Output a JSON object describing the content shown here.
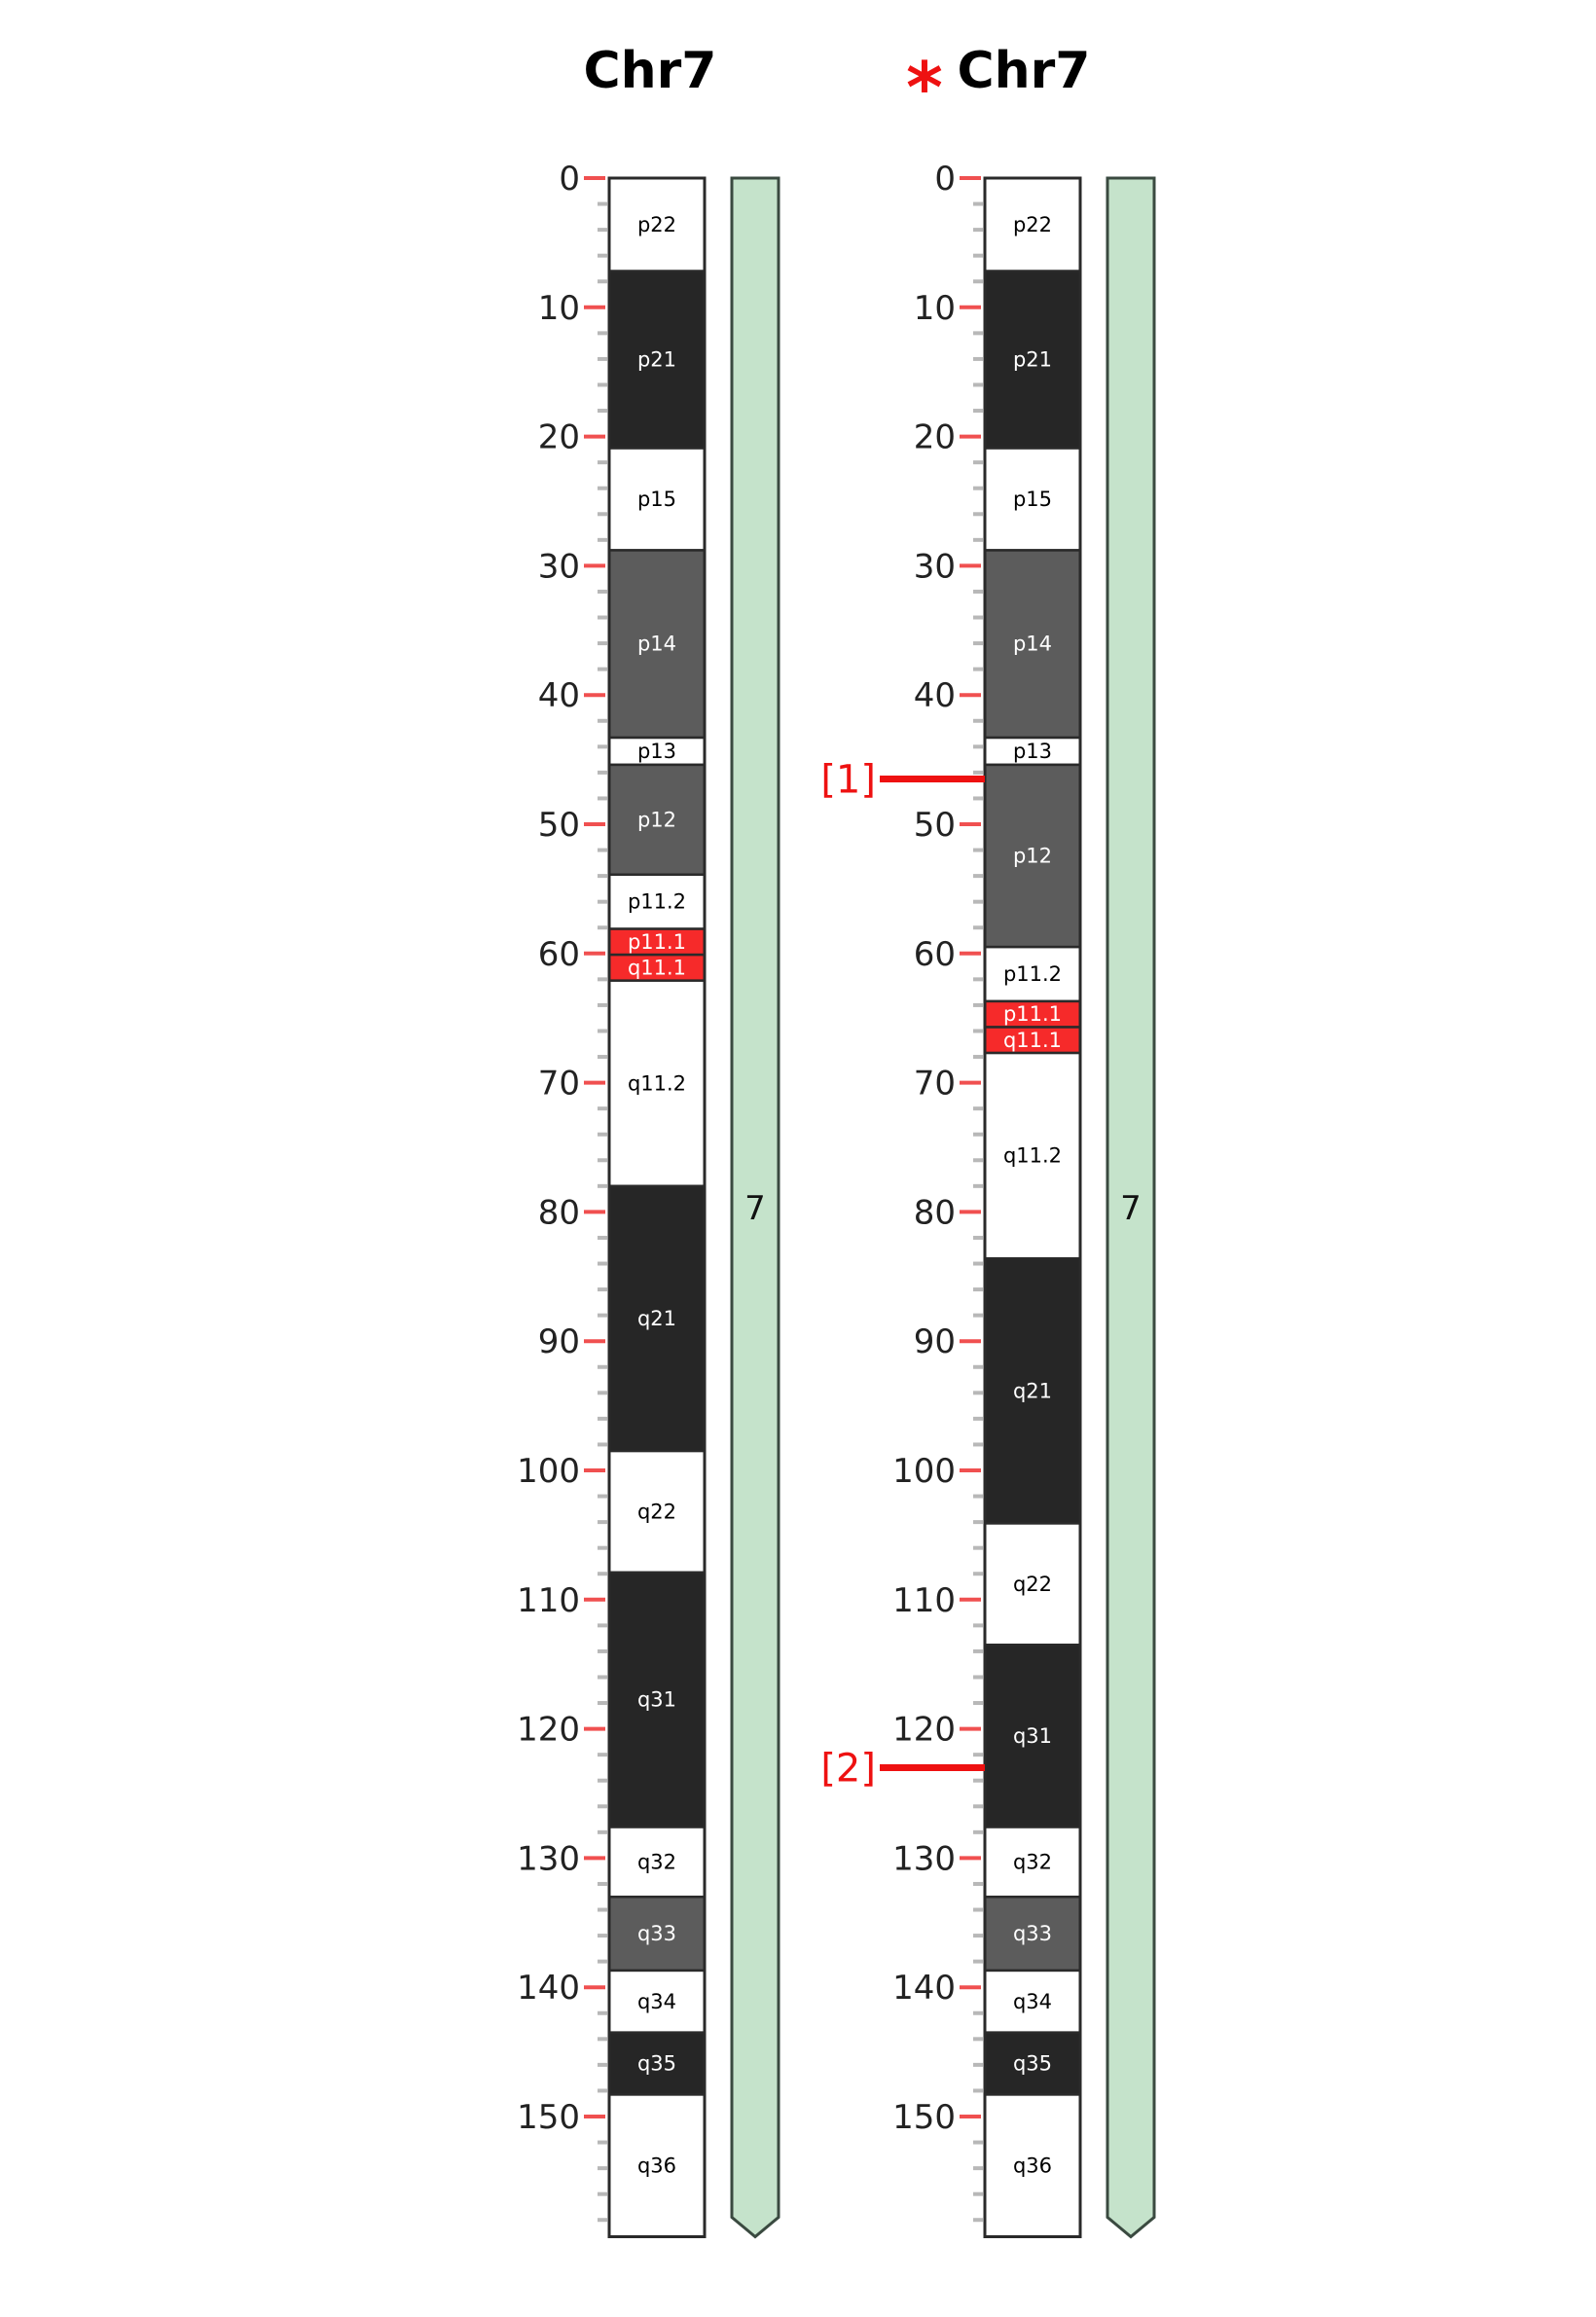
{
  "colors": {
    "major_tick": "#f05050",
    "minor_tick": "#b8b8b8",
    "outline": "#2a2a2a",
    "arm_fill": "#c5e3cb",
    "arm_stroke": "#3a4a40",
    "marker": "#ee1111",
    "star": "#ee1111"
  },
  "band_styles": {
    "gneg": {
      "fill": "#ffffff",
      "text": "#000000"
    },
    "gpos100": {
      "fill": "#262626",
      "text": "#ffffff"
    },
    "gpos75": {
      "fill": "#5c5c5c",
      "text": "#ffffff"
    },
    "acen": {
      "fill": "#f62a2a",
      "text": "#ffffff"
    }
  },
  "axis": {
    "min": 0,
    "max": 160,
    "major_step": 10,
    "minor_step": 2,
    "labels": [
      "0",
      "10",
      "20",
      "30",
      "40",
      "50",
      "60",
      "70",
      "80",
      "90",
      "100",
      "110",
      "120",
      "130",
      "140",
      "150"
    ]
  },
  "panels": [
    {
      "title": "Chr7",
      "starred": false,
      "star_symbol": "",
      "arm_label": "7",
      "length": 159.3,
      "bands": [
        {
          "name": "p22",
          "start": 0,
          "end": 7.2,
          "stain": "gneg"
        },
        {
          "name": "p21",
          "start": 7.2,
          "end": 20.9,
          "stain": "gpos100"
        },
        {
          "name": "p15",
          "start": 20.9,
          "end": 28.8,
          "stain": "gneg"
        },
        {
          "name": "p14",
          "start": 28.8,
          "end": 43.3,
          "stain": "gpos75"
        },
        {
          "name": "p13",
          "start": 43.3,
          "end": 45.4,
          "stain": "gneg"
        },
        {
          "name": "p12",
          "start": 45.4,
          "end": 53.9,
          "stain": "gpos75"
        },
        {
          "name": "p11.2",
          "start": 53.9,
          "end": 58.1,
          "stain": "gneg"
        },
        {
          "name": "p11.1",
          "start": 58.1,
          "end": 60.1,
          "stain": "acen"
        },
        {
          "name": "q11.1",
          "start": 60.1,
          "end": 62.1,
          "stain": "acen"
        },
        {
          "name": "q11.2",
          "start": 62.1,
          "end": 78.0,
          "stain": "gneg"
        },
        {
          "name": "q21",
          "start": 78.0,
          "end": 98.5,
          "stain": "gpos100"
        },
        {
          "name": "q22",
          "start": 98.5,
          "end": 107.9,
          "stain": "gneg"
        },
        {
          "name": "q31",
          "start": 107.9,
          "end": 127.6,
          "stain": "gpos100"
        },
        {
          "name": "q32",
          "start": 127.6,
          "end": 133.0,
          "stain": "gneg"
        },
        {
          "name": "q33",
          "start": 133.0,
          "end": 138.7,
          "stain": "gpos75"
        },
        {
          "name": "q34",
          "start": 138.7,
          "end": 143.5,
          "stain": "gneg"
        },
        {
          "name": "q35",
          "start": 143.5,
          "end": 148.3,
          "stain": "gpos100"
        },
        {
          "name": "q36",
          "start": 148.3,
          "end": 159.3,
          "stain": "gneg"
        }
      ],
      "markers": []
    },
    {
      "title": "Chr7",
      "starred": true,
      "star_symbol": "*",
      "arm_label": "7",
      "length": 159.3,
      "bands": [
        {
          "name": "p22",
          "start": 0,
          "end": 7.2,
          "stain": "gneg"
        },
        {
          "name": "p21",
          "start": 7.2,
          "end": 20.9,
          "stain": "gpos100"
        },
        {
          "name": "p15",
          "start": 20.9,
          "end": 28.8,
          "stain": "gneg"
        },
        {
          "name": "p14",
          "start": 28.8,
          "end": 43.3,
          "stain": "gpos75"
        },
        {
          "name": "p13",
          "start": 43.3,
          "end": 45.4,
          "stain": "gneg"
        },
        {
          "name": "p12",
          "start": 45.4,
          "end": 59.5,
          "stain": "gpos75"
        },
        {
          "name": "p11.2",
          "start": 59.5,
          "end": 63.7,
          "stain": "gneg"
        },
        {
          "name": "p11.1",
          "start": 63.7,
          "end": 65.7,
          "stain": "acen"
        },
        {
          "name": "q11.1",
          "start": 65.7,
          "end": 67.7,
          "stain": "acen"
        },
        {
          "name": "q11.2",
          "start": 67.7,
          "end": 83.6,
          "stain": "gneg"
        },
        {
          "name": "q21",
          "start": 83.6,
          "end": 104.1,
          "stain": "gpos100"
        },
        {
          "name": "q22",
          "start": 104.1,
          "end": 113.5,
          "stain": "gneg"
        },
        {
          "name": "q31",
          "start": 113.5,
          "end": 127.6,
          "stain": "gpos100"
        },
        {
          "name": "q32",
          "start": 127.6,
          "end": 133.0,
          "stain": "gneg"
        },
        {
          "name": "q33",
          "start": 133.0,
          "end": 138.7,
          "stain": "gpos75"
        },
        {
          "name": "q34",
          "start": 138.7,
          "end": 143.5,
          "stain": "gneg"
        },
        {
          "name": "q35",
          "start": 143.5,
          "end": 148.3,
          "stain": "gpos100"
        },
        {
          "name": "q36",
          "start": 148.3,
          "end": 159.3,
          "stain": "gneg"
        }
      ],
      "markers": [
        {
          "label": "[1]",
          "position": 46.5
        },
        {
          "label": "[2]",
          "position": 123.0
        }
      ]
    }
  ]
}
